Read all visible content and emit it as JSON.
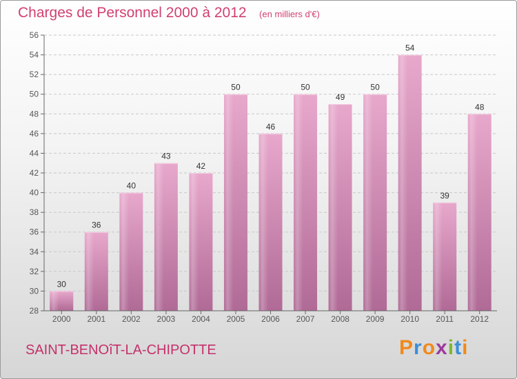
{
  "title": "Charges de Personnel 2000 à 2012",
  "unit_note": "(en milliers d'€)",
  "commune": "SAINT-BENOîT-LA-CHIPOTTE",
  "logo": {
    "letters": [
      "P",
      "r",
      "o",
      "x",
      "i",
      "t",
      "i"
    ],
    "colors": [
      "#f08a1c",
      "#3a8fd8",
      "#f08a1c",
      "#9c3a9c",
      "#7cb82e",
      "#3a8fd8",
      "#f08a1c"
    ]
  },
  "colors": {
    "title": "#d14070",
    "bar_top": "#e8a8cc",
    "bar_bottom": "#b06a96",
    "grid": "#c8c8c8"
  },
  "chart_data": {
    "type": "bar",
    "categories": [
      "2000",
      "2001",
      "2002",
      "2003",
      "2004",
      "2005",
      "2006",
      "2007",
      "2008",
      "2009",
      "2010",
      "2011",
      "2012"
    ],
    "values": [
      30,
      36,
      40,
      43,
      42,
      50,
      46,
      50,
      49,
      50,
      54,
      39,
      48
    ],
    "title": "Charges de Personnel 2000 à 2012",
    "xlabel": "",
    "ylabel": "",
    "ylim": [
      28,
      56
    ],
    "yticks": [
      28,
      30,
      32,
      34,
      36,
      38,
      40,
      42,
      44,
      46,
      48,
      50,
      52,
      54,
      56
    ],
    "grid": true,
    "data_labels": true
  }
}
